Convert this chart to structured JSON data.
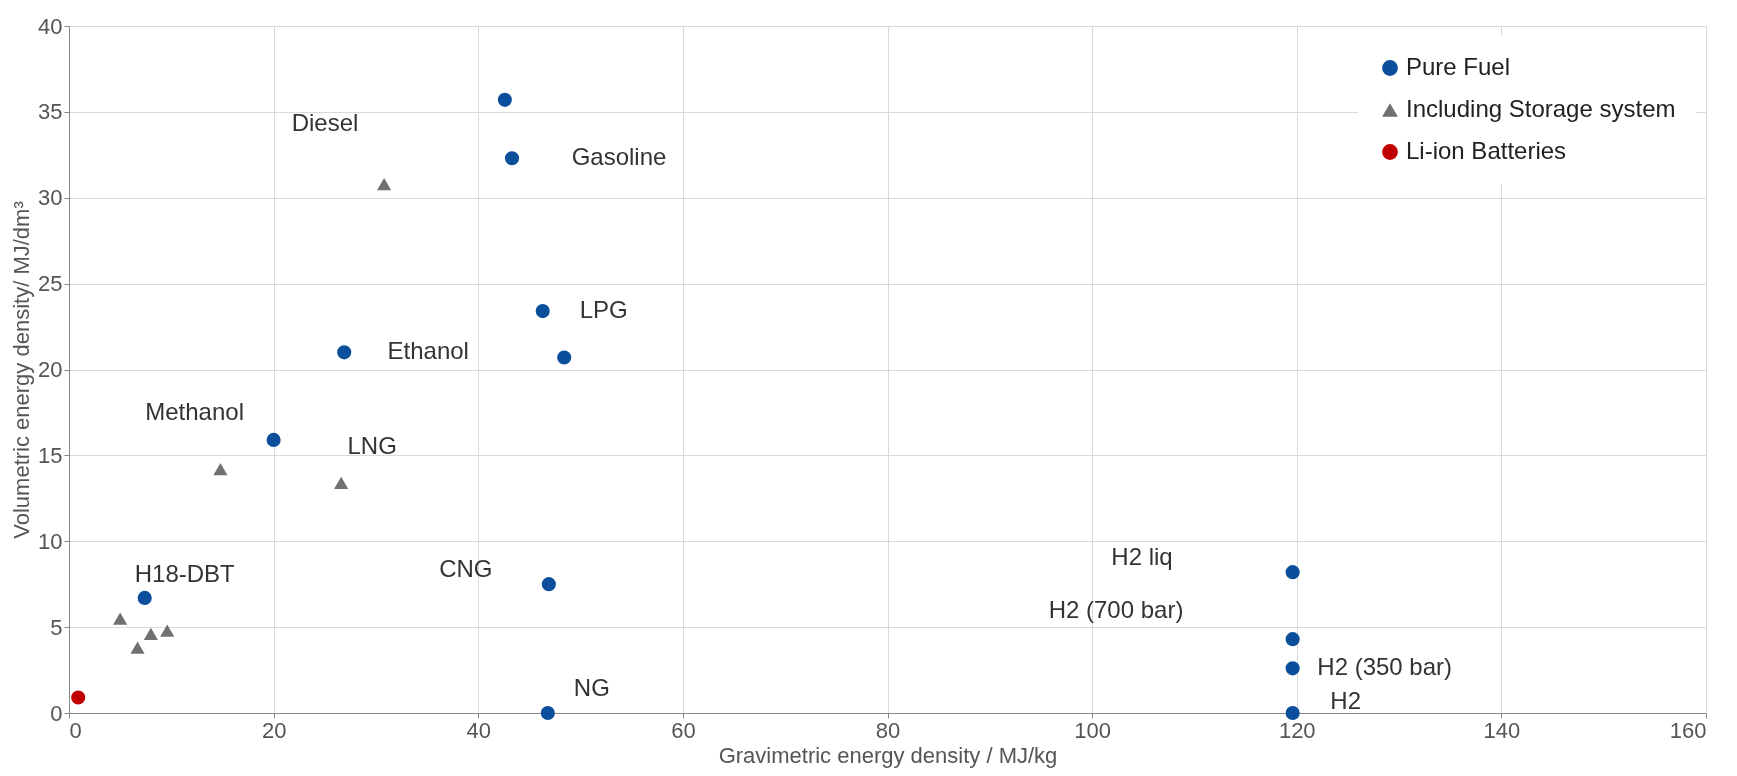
{
  "chart_data": {
    "type": "scatter",
    "xlabel": "Gravimetric energy density / MJ/kg",
    "ylabel": "Volumetric energy density/ MJ/dm³",
    "xlim": [
      0,
      160
    ],
    "xticks": [
      0,
      20,
      40,
      60,
      80,
      100,
      120,
      140,
      160
    ],
    "ylim": [
      0,
      40
    ],
    "yticks": [
      0,
      5,
      10,
      15,
      20,
      25,
      30,
      35,
      40
    ],
    "grid": true,
    "legend": "top right",
    "series": [
      {
        "name": "Pure Fuel",
        "color": "#0b4f9c",
        "marker": "circle",
        "x": [
          42.6,
          43.3,
          46.3,
          26.9,
          48.4,
          20.0,
          46.9,
          7.4,
          119.6,
          119.6,
          119.6,
          119.6,
          46.8
        ],
        "values": [
          35.7,
          32.3,
          23.4,
          21.0,
          20.7,
          15.9,
          7.5,
          6.7,
          8.2,
          4.3,
          2.6,
          0,
          0
        ]
      },
      {
        "name": "Including Storage system",
        "color": "#707070",
        "marker": "triangle",
        "x": [
          30.8,
          14.8,
          26.6,
          5.0,
          8.0,
          9.6,
          6.7
        ],
        "values": [
          30.8,
          14.2,
          13.4,
          5.5,
          4.6,
          4.8,
          3.8
        ]
      },
      {
        "name": "Li-ion Batteries",
        "color": "#c00000",
        "marker": "circle",
        "x": [
          0.9
        ],
        "values": [
          0.9
        ]
      }
    ],
    "annotations": [
      "Diesel",
      {
        "text": "Gasoline",
        "x": 43.3,
        "y": 32.3
      },
      {
        "text": "LPG",
        "x": 46.3,
        "y": 23.4
      },
      {
        "text": "Ethanol",
        "x": 26.9,
        "y": 21.0
      },
      {
        "text": "Methanol",
        "x": 20.0,
        "y": 15.9
      },
      {
        "text": "LNG",
        "x": 26.6,
        "y": 13.4
      },
      {
        "text": "H18-DBT",
        "x": 7.4,
        "y": 6.7
      },
      {
        "text": "CNG",
        "x": 46.9,
        "y": 7.5
      },
      "H2 liq",
      "H2 (700 bar)",
      {
        "text": "H2 (350 bar)",
        "x": 119.6,
        "y": 2.6
      },
      {
        "text": "H2",
        "x": 119.6,
        "y": 0
      },
      {
        "text": "NG",
        "x": 46.8,
        "y": 0
      }
    ]
  }
}
